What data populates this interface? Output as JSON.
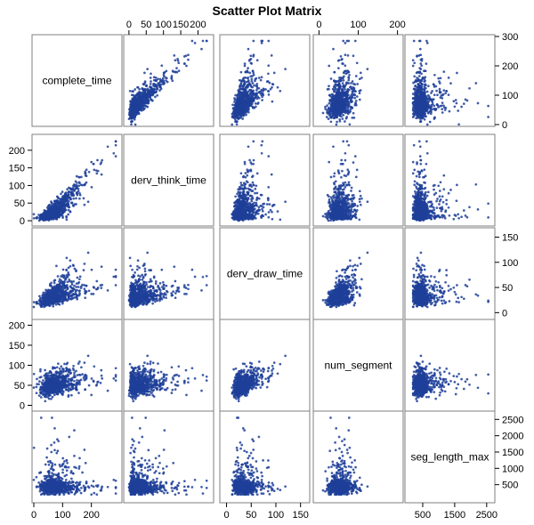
{
  "chart_data": {
    "type": "scatter",
    "title": "Scatter Plot Matrix",
    "point_color": "#1f3f99",
    "frame_color": "#7f7f7f",
    "n_points": 700,
    "variables": [
      {
        "name": "complete_time",
        "label": "complete_time",
        "range": [
          0,
          300
        ],
        "ticks": [
          0,
          100,
          200,
          300
        ],
        "axis_ticks": [
          0,
          100,
          200
        ],
        "tick_labels": [
          "0",
          "100",
          "200",
          "300"
        ],
        "axis_tick_labels": [
          "0",
          "100",
          "200"
        ]
      },
      {
        "name": "derv_think_time",
        "label": "derv_think_time",
        "range": [
          -10,
          240
        ],
        "ticks": [
          0,
          50,
          100,
          150,
          200
        ],
        "tick_labels": [
          "0",
          "50",
          "100",
          "150",
          "200"
        ]
      },
      {
        "name": "derv_draw_time",
        "label": "derv_draw_time",
        "range": [
          -10,
          165
        ],
        "ticks": [
          0,
          50,
          100,
          150
        ],
        "tick_labels": [
          "0",
          "50",
          "100",
          "150"
        ]
      },
      {
        "name": "num_segment",
        "label": "num_segment",
        "range": [
          -10,
          210
        ],
        "ticks": [
          0,
          50,
          100,
          150,
          200
        ],
        "axis_ticks": [
          0,
          100,
          200
        ],
        "tick_labels": [
          "0",
          "50",
          "100",
          "150",
          "200"
        ],
        "axis_tick_labels": [
          "0",
          "100",
          "200"
        ]
      },
      {
        "name": "seg_length_max",
        "label": "seg_length_max",
        "range": [
          0,
          2700
        ],
        "ticks": [
          500,
          1000,
          1500,
          2000,
          2500
        ],
        "axis_ticks": [
          500,
          1500,
          2500
        ],
        "tick_labels": [
          "500",
          "1000",
          "1500",
          "2000",
          "2500"
        ],
        "axis_tick_labels": [
          "500",
          "1500",
          "2500"
        ]
      }
    ]
  }
}
